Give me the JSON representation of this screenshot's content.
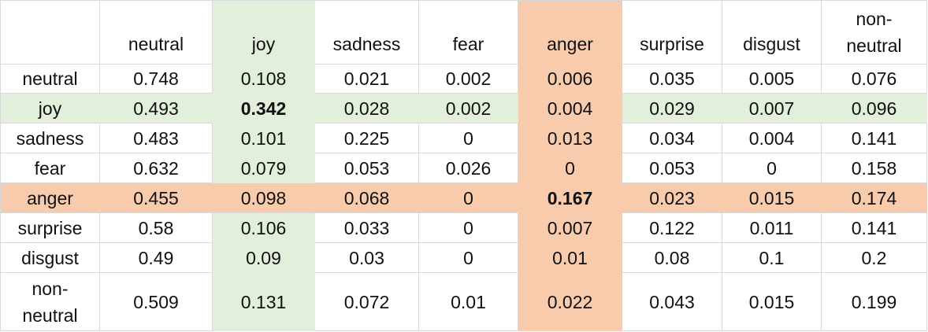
{
  "table": {
    "corner": "",
    "columns": [
      "neutral",
      "joy",
      "sadness",
      "fear",
      "anger",
      "surprise",
      "disgust",
      "non-\nneutral"
    ],
    "rows": [
      {
        "label": "neutral",
        "values": [
          "0.748",
          "0.108",
          "0.021",
          "0.002",
          "0.006",
          "0.035",
          "0.005",
          "0.076"
        ]
      },
      {
        "label": "joy",
        "values": [
          "0.493",
          "0.342",
          "0.028",
          "0.002",
          "0.004",
          "0.029",
          "0.007",
          "0.096"
        ]
      },
      {
        "label": "sadness",
        "values": [
          "0.483",
          "0.101",
          "0.225",
          "0",
          "0.013",
          "0.034",
          "0.004",
          "0.141"
        ]
      },
      {
        "label": "fear",
        "values": [
          "0.632",
          "0.079",
          "0.053",
          "0.026",
          "0",
          "0.053",
          "0",
          "0.158"
        ]
      },
      {
        "label": "anger",
        "values": [
          "0.455",
          "0.098",
          "0.068",
          "0",
          "0.167",
          "0.023",
          "0.015",
          "0.174"
        ]
      },
      {
        "label": "surprise",
        "values": [
          "0.58",
          "0.106",
          "0.033",
          "0",
          "0.007",
          "0.122",
          "0.011",
          "0.141"
        ]
      },
      {
        "label": "disgust",
        "values": [
          "0.49",
          "0.09",
          "0.03",
          "0",
          "0.01",
          "0.08",
          "0.1",
          "0.2"
        ]
      },
      {
        "label": "non-\nneutral",
        "values": [
          "0.509",
          "0.131",
          "0.072",
          "0.01",
          "0.022",
          "0.043",
          "0.015",
          "0.199"
        ]
      }
    ],
    "highlight": {
      "joy_color": "#e2efda",
      "anger_color": "#f8cbad",
      "joy_column_index": 1,
      "anger_column_index": 4,
      "joy_row_index": 1,
      "anger_row_index": 4
    }
  }
}
